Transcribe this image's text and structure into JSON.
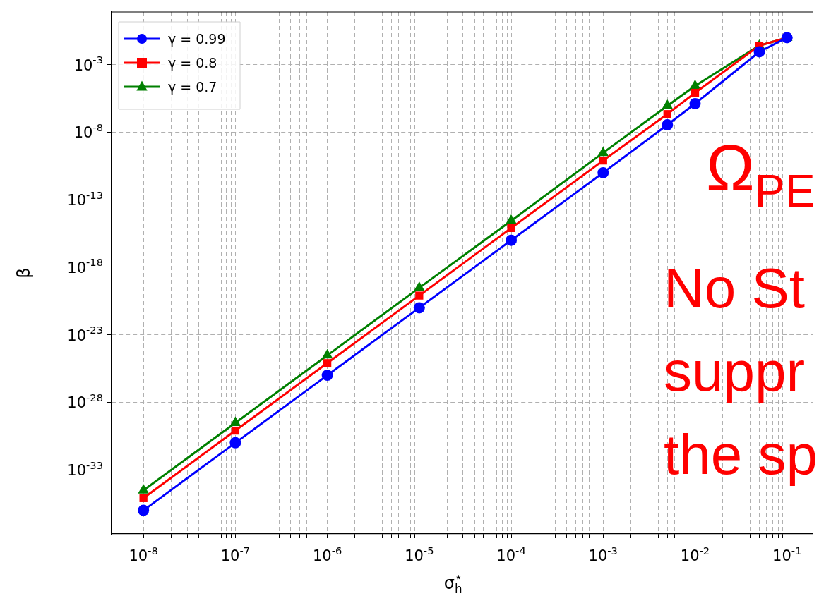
{
  "chart_data": {
    "type": "line",
    "xlabel": "σ$_{h}$$^{⋆}$",
    "ylabel": "β",
    "log": "xy",
    "grid": true,
    "legend": "top left",
    "line_style": "solid",
    "x": [
      1e-08,
      1e-07,
      1e-06,
      1e-05,
      0.0001,
      0.001,
      0.005,
      0.01,
      0.05,
      0.1
    ],
    "xlim": [
      4.5e-09,
      0.19
    ],
    "xticks": [
      {
        "value": 1e-08,
        "label": "10$^{-8}$"
      },
      {
        "value": 2e-08,
        "label": null
      },
      {
        "value": 3e-08,
        "label": null
      },
      {
        "value": 4e-08,
        "label": null
      },
      {
        "value": 5e-08,
        "label": null
      },
      {
        "value": 6e-08,
        "label": null
      },
      {
        "value": 7e-08,
        "label": null
      },
      {
        "value": 8e-08,
        "label": null
      },
      {
        "value": 9e-08,
        "label": null
      },
      {
        "value": 1e-07,
        "label": "10$^{-7}$"
      },
      {
        "value": 2e-07,
        "label": null
      },
      {
        "value": 3e-07,
        "label": null
      },
      {
        "value": 4e-07,
        "label": null
      },
      {
        "value": 5e-07,
        "label": null
      },
      {
        "value": 6e-07,
        "label": null
      },
      {
        "value": 7e-07,
        "label": null
      },
      {
        "value": 8e-07,
        "label": null
      },
      {
        "value": 9e-07,
        "label": null
      },
      {
        "value": 1e-06,
        "label": "10$^{-6}$"
      },
      {
        "value": 2e-06,
        "label": null
      },
      {
        "value": 3e-06,
        "label": null
      },
      {
        "value": 4e-06,
        "label": null
      },
      {
        "value": 5e-06,
        "label": null
      },
      {
        "value": 6e-06,
        "label": null
      },
      {
        "value": 7e-06,
        "label": null
      },
      {
        "value": 8e-06,
        "label": null
      },
      {
        "value": 9e-06,
        "label": null
      },
      {
        "value": 1e-05,
        "label": "10$^{-5}$"
      },
      {
        "value": 2e-05,
        "label": null
      },
      {
        "value": 3e-05,
        "label": null
      },
      {
        "value": 4e-05,
        "label": null
      },
      {
        "value": 5e-05,
        "label": null
      },
      {
        "value": 6e-05,
        "label": null
      },
      {
        "value": 7e-05,
        "label": null
      },
      {
        "value": 8e-05,
        "label": null
      },
      {
        "value": 9e-05,
        "label": null
      },
      {
        "value": 0.0001,
        "label": "10$^{-4}$"
      },
      {
        "value": 0.0002,
        "label": null
      },
      {
        "value": 0.0003,
        "label": null
      },
      {
        "value": 0.0004,
        "label": null
      },
      {
        "value": 0.0005,
        "label": null
      },
      {
        "value": 0.0006,
        "label": null
      },
      {
        "value": 0.0007,
        "label": null
      },
      {
        "value": 0.0008,
        "label": null
      },
      {
        "value": 0.0009,
        "label": null
      },
      {
        "value": 0.001,
        "label": "10$^{-3}$"
      },
      {
        "value": 0.002,
        "label": null
      },
      {
        "value": 0.003,
        "label": null
      },
      {
        "value": 0.004,
        "label": null
      },
      {
        "value": 0.005,
        "label": null
      },
      {
        "value": 0.006,
        "label": null
      },
      {
        "value": 0.007,
        "label": null
      },
      {
        "value": 0.008,
        "label": null
      },
      {
        "value": 0.009,
        "label": null
      },
      {
        "value": 0.01,
        "label": "10$^{-2}$"
      },
      {
        "value": 0.02,
        "label": null
      },
      {
        "value": 0.03,
        "label": null
      },
      {
        "value": 0.04,
        "label": null
      },
      {
        "value": 0.05,
        "label": null
      },
      {
        "value": 0.06,
        "label": null
      },
      {
        "value": 0.07,
        "label": null
      },
      {
        "value": 0.08,
        "label": null
      },
      {
        "value": 0.09,
        "label": null
      },
      {
        "value": 0.1,
        "label": "10$^{-1}$"
      }
    ],
    "ylim": [
      1.8e-38,
      8
    ],
    "yticks": [
      {
        "value": 1e-33,
        "label": "10$^{-33}$"
      },
      {
        "value": 1e-28,
        "label": "10$^{-28}$"
      },
      {
        "value": 1e-23,
        "label": "10$^{-23}$"
      },
      {
        "value": 1e-18,
        "label": "10$^{-18}$"
      },
      {
        "value": 1e-13,
        "label": "10$^{-13}$"
      },
      {
        "value": 1e-08,
        "label": "10$^{-8}$"
      },
      {
        "value": 0.001,
        "label": "10$^{-3}$"
      }
    ],
    "series": [
      {
        "name": "γ = 0.99",
        "color": "#0000ff",
        "marker": "circle",
        "values": [
          1e-36,
          1e-31,
          1e-26,
          1e-21,
          1e-16,
          1e-11,
          3.5e-08,
          1.3e-06,
          0.009,
          0.1
        ]
      },
      {
        "name": "γ = 0.8",
        "color": "#ff0000",
        "marker": "square",
        "values": [
          8e-36,
          8e-31,
          8e-26,
          8e-21,
          8e-16,
          8e-11,
          2.2e-07,
          8.3e-06,
          0.026,
          0.1
        ]
      },
      {
        "name": "γ = 0.7",
        "color": "#008000",
        "marker": "triangle",
        "values": [
          3e-35,
          3e-30,
          3e-25,
          3e-20,
          2.8e-15,
          3e-10,
          9e-07,
          2.7e-05,
          0.026,
          0.1
        ]
      }
    ],
    "annotations": [
      "Ω$_{PE}$",
      "No St",
      "suppr",
      "the sp"
    ]
  }
}
